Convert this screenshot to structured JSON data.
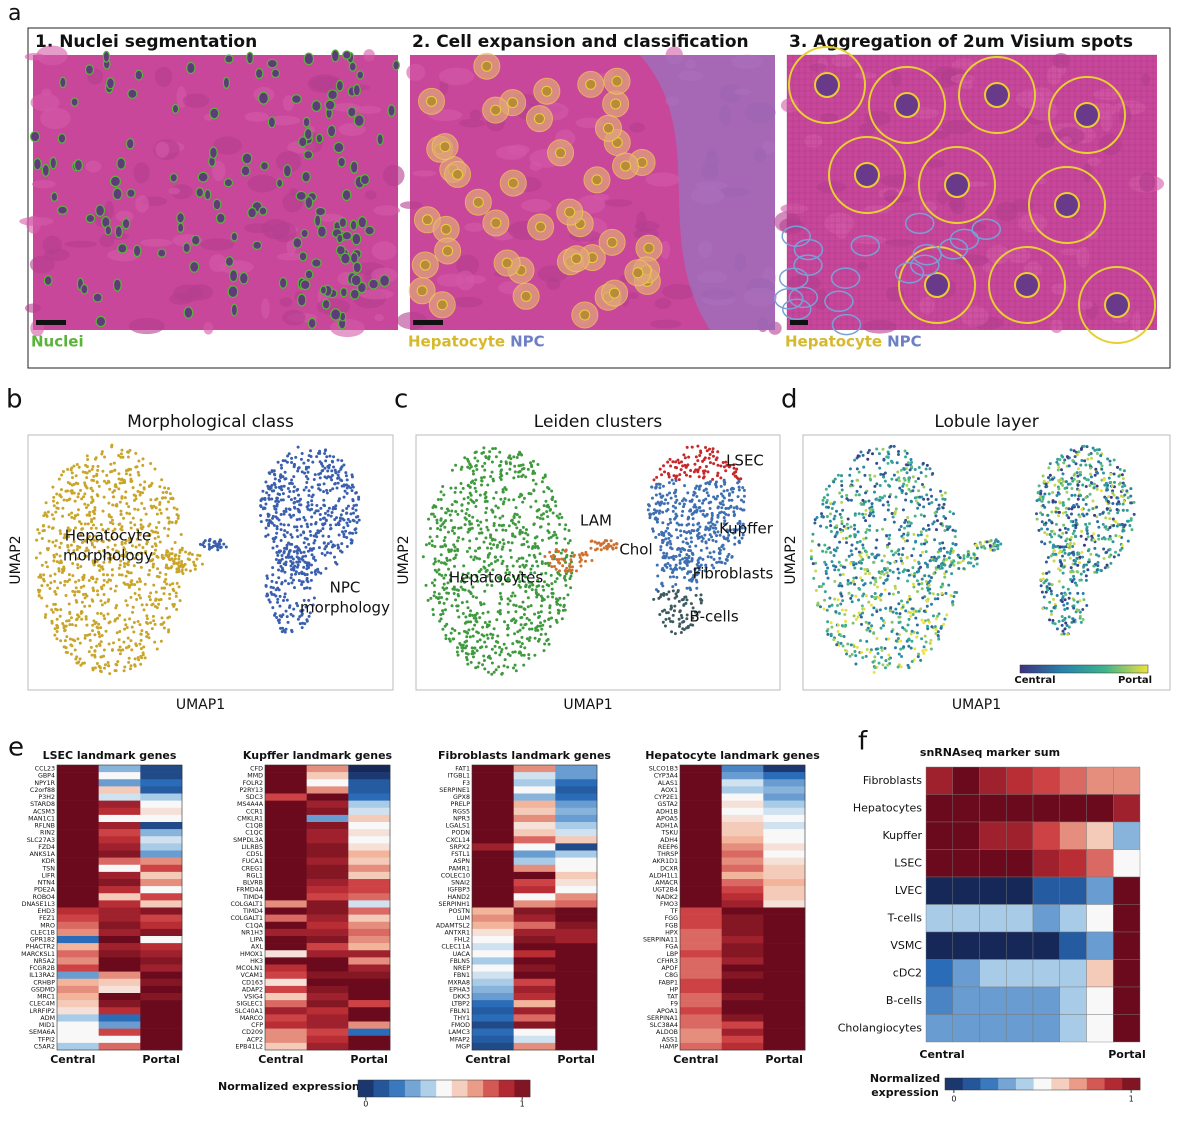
{
  "panel_a": {
    "label": "a",
    "panels": [
      {
        "title": "1. Nuclei segmentation",
        "legend": [
          {
            "text": "Nuclei",
            "color": "#5ab43c"
          }
        ]
      },
      {
        "title": "2. Cell expansion and classification",
        "legend": [
          {
            "text": "Hepatocyte",
            "color": "#d6b92c"
          },
          {
            "text": "NPC",
            "color": "#6d80c6"
          }
        ]
      },
      {
        "title": "3. Aggregation of 2um Visium spots",
        "legend": [
          {
            "text": "Hepatocyte",
            "color": "#d6b92c"
          },
          {
            "text": "NPC",
            "color": "#6d80c6"
          }
        ]
      }
    ]
  },
  "umaps": [
    {
      "label": "b",
      "title": "Morphological class",
      "xlabel": "UMAP1",
      "ylabel": "UMAP2",
      "annotations": [
        {
          "lines": [
            "Hepatocyte",
            "morphology"
          ]
        },
        {
          "lines": [
            "NPC",
            "morphology"
          ]
        }
      ]
    },
    {
      "label": "c",
      "title": "Leiden clusters",
      "xlabel": "UMAP1",
      "ylabel": "UMAP2",
      "annotations": [
        {
          "lines": [
            "LSEC"
          ]
        },
        {
          "lines": [
            "LAM"
          ]
        },
        {
          "lines": [
            "Kupffer"
          ]
        },
        {
          "lines": [
            "Chol"
          ]
        },
        {
          "lines": [
            "Hepatocytes"
          ]
        },
        {
          "lines": [
            "Fibroblasts"
          ]
        },
        {
          "lines": [
            "B-cells"
          ]
        }
      ]
    },
    {
      "label": "d",
      "title": "Lobule layer",
      "xlabel": "UMAP1",
      "ylabel": "UMAP2",
      "annotations": [],
      "colorbar": [
        "Central",
        "Portal"
      ]
    }
  ],
  "heatmaps": {
    "label": "e",
    "columns": [
      "Central",
      "Portal"
    ],
    "colorbar": {
      "label": "Normalized expression",
      "ticks": [
        0,
        1
      ]
    },
    "panels": [
      {
        "title": "LSEC landmark genes",
        "genes": [
          "CCL23",
          "GBP4",
          "NPY1R",
          "C2orf88",
          "P3H2",
          "STARD8",
          "ACSM3",
          "MAN1C1",
          "RFLNB",
          "RIN2",
          "SLC27A3",
          "FZD4",
          "ANKS1A",
          "KDR",
          "TSN",
          "LIFR",
          "NTN4",
          "PDE2A",
          "ROBO4",
          "DNASE1L3",
          "EHD3",
          "FEZ1",
          "MRO",
          "CLEC1B",
          "GPR182",
          "PHACTR2",
          "MARCKSL1",
          "NR5A2",
          "FCGR2B",
          "IL13RA2",
          "CRHBP",
          "GSDMD",
          "MRC1",
          "CLEC4M",
          "LRRFIP2",
          "ADM",
          "MID1",
          "SEMA6A",
          "TFPI2",
          "C5AR2"
        ],
        "values": [
          [
            1,
            0.35,
            0.1
          ],
          [
            1,
            0.5,
            0.1
          ],
          [
            1,
            0.3,
            0.2
          ],
          [
            1,
            0.6,
            0.15
          ],
          [
            1,
            0.45,
            0.4
          ],
          [
            1,
            0.9,
            0.5
          ],
          [
            1,
            0.85,
            0.55
          ],
          [
            1,
            0.5,
            0.5
          ],
          [
            1,
            0.9,
            0.1
          ],
          [
            1,
            0.8,
            0.35
          ],
          [
            1,
            0.85,
            0.45
          ],
          [
            1,
            0.9,
            0.4
          ],
          [
            1,
            0.95,
            0.3
          ],
          [
            1,
            0.75,
            0.7
          ],
          [
            1,
            0.5,
            0.8
          ],
          [
            1,
            0.9,
            0.6
          ],
          [
            1,
            0.95,
            0.7
          ],
          [
            1,
            0.85,
            0.5
          ],
          [
            1,
            0.6,
            0.8
          ],
          [
            1,
            0.85,
            0.6
          ],
          [
            0.85,
            0.9,
            0.95
          ],
          [
            0.8,
            0.9,
            0.8
          ],
          [
            0.75,
            0.95,
            0.85
          ],
          [
            0.7,
            0.9,
            0.95
          ],
          [
            0.2,
            1,
            0.5
          ],
          [
            0.65,
            0.9,
            0.85
          ],
          [
            0.75,
            0.95,
            0.9
          ],
          [
            0.7,
            1,
            0.95
          ],
          [
            0.8,
            1,
            0.9
          ],
          [
            0.3,
            0.7,
            1
          ],
          [
            0.65,
            0.6,
            0.95
          ],
          [
            0.7,
            0.55,
            1
          ],
          [
            0.65,
            1,
            0.95
          ],
          [
            0.6,
            0.95,
            1
          ],
          [
            0.55,
            0.85,
            1
          ],
          [
            0.4,
            0.2,
            1
          ],
          [
            0.5,
            0.3,
            1
          ],
          [
            0.5,
            0.8,
            1
          ],
          [
            0.5,
            0.5,
            1
          ],
          [
            0.4,
            0.75,
            1
          ]
        ]
      },
      {
        "title": "Kupffer landmark genes",
        "genes": [
          "CFD",
          "MMD",
          "FOLR2",
          "P2RY13",
          "SDC3",
          "MS4A4A",
          "CCR1",
          "CMKLR1",
          "C1QB",
          "C1QC",
          "SMPDL3A",
          "LILRB5",
          "CD5L",
          "FUCA1",
          "CREG1",
          "RGL1",
          "BLVRB",
          "FRMD4A",
          "TIMD4",
          "COLGALT1",
          "TIMD4",
          "COLGALT1",
          "C1QA",
          "NR1H3",
          "LIPA",
          "AXL",
          "HMOX1",
          "HK3",
          "MCOLN1",
          "VCAM1",
          "CD163",
          "ADAP2",
          "VSIG4",
          "SIGLEC1",
          "SLC40A1",
          "MARCO",
          "CFP",
          "CD209",
          "ACP2",
          "EPB41L2"
        ],
        "values": [
          [
            1,
            0.7,
            0
          ],
          [
            1,
            0.6,
            0.05
          ],
          [
            1,
            0.5,
            0.15
          ],
          [
            1,
            0.7,
            0.15
          ],
          [
            0.8,
            1,
            0.2
          ],
          [
            1,
            0.9,
            0.4
          ],
          [
            1,
            0.95,
            0.45
          ],
          [
            1,
            0.3,
            0.6
          ],
          [
            1,
            0.95,
            0.5
          ],
          [
            1,
            0.9,
            0.55
          ],
          [
            1,
            0.9,
            0.5
          ],
          [
            1,
            0.95,
            0.55
          ],
          [
            1,
            0.95,
            0.65
          ],
          [
            1,
            0.9,
            0.6
          ],
          [
            1,
            0.95,
            0.7
          ],
          [
            1,
            0.95,
            0.6
          ],
          [
            1,
            0.9,
            0.8
          ],
          [
            1,
            0.85,
            0.8
          ],
          [
            1,
            0.8,
            0.75
          ],
          [
            0.7,
            0.95,
            0.45
          ],
          [
            1,
            0.95,
            0.75
          ],
          [
            0.75,
            0.9,
            0.6
          ],
          [
            1,
            0.85,
            0.7
          ],
          [
            0.9,
            0.9,
            0.75
          ],
          [
            1,
            0.95,
            0.7
          ],
          [
            1,
            0.8,
            0.65
          ],
          [
            0.55,
            0.9,
            0.9
          ],
          [
            1,
            1,
            0.7
          ],
          [
            0.85,
            1,
            0.9
          ],
          [
            0.8,
            0.95,
            0.95
          ],
          [
            0.55,
            1,
            1
          ],
          [
            0.8,
            0.95,
            1
          ],
          [
            0.6,
            0.9,
            1
          ],
          [
            0.75,
            0.95,
            0.8
          ],
          [
            0.9,
            0.85,
            1
          ],
          [
            0.8,
            0.9,
            1
          ],
          [
            0.85,
            0.9,
            0.7
          ],
          [
            0.7,
            0.8,
            0.2
          ],
          [
            0.7,
            0.85,
            1
          ],
          [
            0.6,
            0.9,
            1
          ]
        ]
      },
      {
        "title": "Fibroblasts landmark genes",
        "genes": [
          "FAT1",
          "ITGBL1",
          "F3",
          "SERPINE1",
          "GPX8",
          "PRELP",
          "RGS5",
          "NPR3",
          "LGALS1",
          "PODN",
          "CXCL14",
          "SRPX2",
          "FSTL1",
          "ASPN",
          "PAMR1",
          "COLEC10",
          "SNAI2",
          "IGFBP3",
          "HAND2",
          "SERPINH1",
          "POSTN",
          "LUM",
          "ADAMTSL2",
          "ANTXR1",
          "FHL2",
          "CLEC11A",
          "UACA",
          "FBLN5",
          "NREP",
          "FBN1",
          "MXRA8",
          "EPHA3",
          "DKK3",
          "LTBP2",
          "FBLN1",
          "THY1",
          "FMOD",
          "LAMC3",
          "MFAP2",
          "MGP"
        ],
        "values": [
          [
            1,
            0.7,
            0.3
          ],
          [
            1,
            0.45,
            0.3
          ],
          [
            1,
            0.4,
            0.2
          ],
          [
            1,
            0.5,
            0.15
          ],
          [
            1,
            0.35,
            0.2
          ],
          [
            1,
            0.65,
            0.3
          ],
          [
            1,
            0.6,
            0.35
          ],
          [
            1,
            0.7,
            0.3
          ],
          [
            1,
            0.55,
            0.4
          ],
          [
            1,
            0.6,
            0.45
          ],
          [
            1,
            0.75,
            0.6
          ],
          [
            0.9,
            0.5,
            0.1
          ],
          [
            1,
            0.3,
            0.4
          ],
          [
            1,
            0.4,
            0.5
          ],
          [
            1,
            0.7,
            0.5
          ],
          [
            1,
            1,
            0.6
          ],
          [
            1,
            0.8,
            0.55
          ],
          [
            1,
            0.85,
            0.5
          ],
          [
            1,
            0.5,
            0.7
          ],
          [
            1,
            0.7,
            0.75
          ],
          [
            0.65,
            0.95,
            1
          ],
          [
            0.7,
            0.9,
            1
          ],
          [
            0.65,
            0.75,
            0.95
          ],
          [
            0.55,
            0.9,
            0.9
          ],
          [
            0.5,
            0.95,
            0.9
          ],
          [
            0.45,
            1,
            1
          ],
          [
            0.5,
            0.85,
            1
          ],
          [
            0.4,
            1,
            1
          ],
          [
            0.5,
            0.95,
            1
          ],
          [
            0.45,
            1,
            1
          ],
          [
            0.4,
            0.8,
            1
          ],
          [
            0.35,
            0.9,
            1
          ],
          [
            0.3,
            0.85,
            1
          ],
          [
            0.2,
            0.65,
            1
          ],
          [
            0.15,
            0.9,
            1
          ],
          [
            0.2,
            0.75,
            1
          ],
          [
            0.1,
            0.95,
            1
          ],
          [
            0.2,
            0.5,
            1
          ],
          [
            0.15,
            0.45,
            1
          ],
          [
            0.1,
            0.7,
            1
          ]
        ]
      },
      {
        "title": "Hepatocyte landmark genes",
        "genes": [
          "SLCO1B3",
          "CYP3A4",
          "ALAS1",
          "AOX1",
          "CYP2E1",
          "GSTA2",
          "ADH1B",
          "APOA5",
          "ADH1A",
          "TSKU",
          "ADH4",
          "REEP6",
          "THRSP",
          "AKR1D1",
          "DCXR",
          "ALDH1L1",
          "AMACR",
          "UGT2B4",
          "NADK2",
          "FMO3",
          "TF",
          "FGG",
          "FGB",
          "HPX",
          "SERPINA11",
          "FGA",
          "LBP",
          "CFHR3",
          "APOF",
          "C8G",
          "FABP1",
          "HP",
          "TAT",
          "F9",
          "APOA1",
          "SERPINA1",
          "SLC38A4",
          "ALDOB",
          "ASS1",
          "HAMP"
        ],
        "values": [
          [
            1,
            0.25,
            0.05
          ],
          [
            1,
            0.3,
            0.2
          ],
          [
            1,
            0.45,
            0.3
          ],
          [
            1,
            0.4,
            0.35
          ],
          [
            1,
            0.5,
            0.3
          ],
          [
            1,
            0.55,
            0.4
          ],
          [
            1,
            0.5,
            0.45
          ],
          [
            1,
            0.55,
            0.5
          ],
          [
            1,
            0.6,
            0.45
          ],
          [
            1,
            0.6,
            0.5
          ],
          [
            1,
            0.65,
            0.5
          ],
          [
            1,
            0.7,
            0.55
          ],
          [
            1,
            0.75,
            0.5
          ],
          [
            1,
            0.7,
            0.55
          ],
          [
            1,
            0.75,
            0.6
          ],
          [
            1,
            0.65,
            0.6
          ],
          [
            1,
            0.75,
            0.65
          ],
          [
            1,
            0.8,
            0.6
          ],
          [
            1,
            0.85,
            0.6
          ],
          [
            1,
            0.9,
            0.55
          ],
          [
            0.8,
            1,
            1
          ],
          [
            0.8,
            0.95,
            1
          ],
          [
            0.8,
            0.95,
            1
          ],
          [
            0.75,
            0.95,
            1
          ],
          [
            0.75,
            0.9,
            1
          ],
          [
            0.75,
            0.95,
            1
          ],
          [
            0.8,
            0.95,
            1
          ],
          [
            0.75,
            0.9,
            1
          ],
          [
            0.75,
            1,
            1
          ],
          [
            0.75,
            0.95,
            1
          ],
          [
            0.8,
            1,
            1
          ],
          [
            0.8,
            1,
            1
          ],
          [
            0.75,
            0.95,
            1
          ],
          [
            0.75,
            1,
            1
          ],
          [
            0.8,
            1,
            1
          ],
          [
            0.75,
            0.95,
            1
          ],
          [
            0.75,
            0.8,
            1
          ],
          [
            0.7,
            0.9,
            1
          ],
          [
            0.7,
            0.8,
            1
          ],
          [
            0.75,
            0.85,
            1
          ]
        ]
      }
    ]
  },
  "marker_sum": {
    "label": "f",
    "title": "snRNAseq marker sum",
    "columns": [
      "Central",
      "Portal"
    ],
    "colorbar": {
      "label": [
        "Normalized",
        "expression"
      ],
      "ticks": [
        0,
        1
      ]
    },
    "rows": [
      "Fibroblasts",
      "Hepatocytes",
      "Kupffer",
      "LSEC",
      "LVEC",
      "T-cells",
      "VSMC",
      "cDC2",
      "B-cells",
      "Cholangiocytes"
    ],
    "values": [
      [
        0.9,
        1,
        0.9,
        0.85,
        0.8,
        0.75,
        0.7,
        0.7
      ],
      [
        1,
        1,
        1,
        1,
        1,
        1,
        1,
        0.9
      ],
      [
        1,
        1,
        0.9,
        0.9,
        0.8,
        0.7,
        0.6,
        0.35
      ],
      [
        1,
        1,
        1,
        1,
        0.9,
        0.85,
        0.75,
        0.5
      ],
      [
        0,
        0,
        0,
        0,
        0.15,
        0.15,
        0.3,
        1
      ],
      [
        0.4,
        0.4,
        0.4,
        0.4,
        0.3,
        0.4,
        0.5,
        1
      ],
      [
        0,
        0,
        0,
        0,
        0,
        0.15,
        0.3,
        1
      ],
      [
        0.2,
        0.3,
        0.4,
        0.4,
        0.4,
        0.4,
        0.6,
        1
      ],
      [
        0.25,
        0.3,
        0.3,
        0.3,
        0.3,
        0.4,
        0.5,
        1
      ],
      [
        0.3,
        0.3,
        0.3,
        0.3,
        0.3,
        0.4,
        0.5,
        1
      ]
    ]
  }
}
